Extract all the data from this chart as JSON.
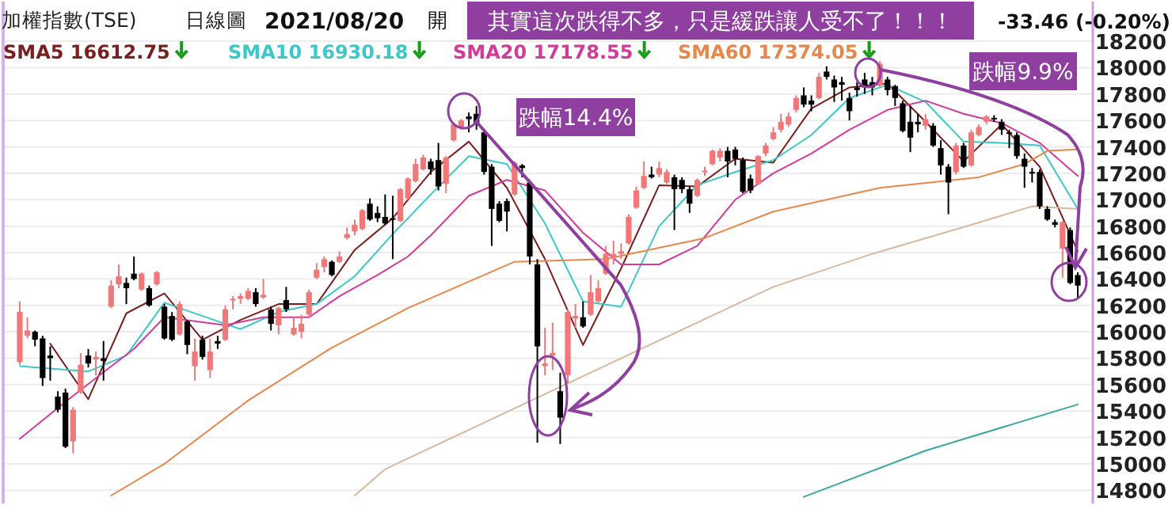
{
  "chart_data": {
    "type": "candlestick",
    "title": "加權指數(TSE)",
    "subtitle": "日線圖",
    "annotations": [
      "2021/08/20",
      "開",
      "-33.46 (-0.20%)",
      "其實這次跌得不多，只是緩跌讓人受不了！！！",
      "跌幅14.4%",
      "跌幅9.9%"
    ],
    "categories": [
      null,
      null,
      null,
      null,
      null,
      null,
      null,
      null,
      null,
      null,
      null,
      null,
      null,
      null,
      null,
      null,
      null,
      null,
      null,
      null,
      null,
      null,
      null,
      null,
      null,
      null,
      null,
      null,
      null,
      null,
      null,
      null,
      null,
      null,
      null,
      null,
      null,
      null,
      null,
      null,
      null,
      null,
      null,
      null,
      null,
      null,
      null,
      null,
      null,
      null,
      null,
      null,
      null,
      null,
      null,
      null,
      null,
      null,
      null,
      null,
      null,
      null,
      null,
      null,
      null,
      null,
      null,
      null,
      null,
      null,
      null,
      null,
      null,
      null,
      null,
      null,
      null,
      null,
      null,
      null,
      null,
      null,
      null,
      null,
      null,
      null,
      null,
      null,
      null,
      null,
      null,
      null,
      null,
      null,
      null,
      null,
      null,
      null,
      null,
      null,
      null,
      null,
      null,
      null,
      null,
      null,
      null,
      null,
      null,
      null,
      null,
      null,
      null,
      null,
      null,
      null,
      null,
      null,
      null,
      null,
      null,
      null,
      null,
      null,
      null,
      null,
      null,
      null,
      null,
      null,
      null,
      null,
      null,
      null,
      null,
      null,
      null,
      null,
      null,
      null
    ],
    "colors": [
      "#f07878",
      "#f07878",
      "#000000",
      "#000000",
      "#000000",
      "#000000",
      "#000000",
      "#f07878",
      "#f07878",
      "#000000",
      "#f07878",
      "#000000",
      "#f07878",
      "#f07878",
      "#000000",
      "#000000",
      "#f07878",
      "#000000",
      "#f07878",
      "#000000",
      "#000000",
      "#f07878",
      "#000000",
      "#f07878",
      "#000000",
      "#f07878",
      "#000000",
      "#f07878",
      "#f07878",
      "#f07878",
      "#f07878",
      "#000000",
      "#f07878",
      "#000000",
      "#f07878",
      "#000000",
      "#f07878",
      "#f07878",
      "#f07878",
      "#f07878",
      "#f07878",
      "#000000",
      "#f07878",
      "#f07878",
      "#f07878",
      "#f07878",
      "#000000",
      "#000000",
      "#000000",
      "#000000",
      "#f07878",
      "#f07878",
      "#f07878",
      "#f07878",
      "#000000",
      "#000000",
      "#f07878",
      "#f07878",
      "#f07878",
      "#000000",
      "#000000",
      "#000000",
      "#000000",
      "#000000",
      "#000000",
      "#f07878",
      "#000000",
      "#000000",
      "#000000",
      "#f07878",
      "#f07878",
      "#000000",
      "#f07878",
      "#f07878",
      "#000000",
      "#f07878",
      "#f07878",
      "#f07878",
      "#f07878",
      "#f07878",
      "#f07878",
      "#f07878",
      "#f07878",
      "#000000",
      "#f07878",
      "#f07878",
      "#000000",
      "#000000",
      "#000000",
      "#f07878",
      "#f07878",
      "#f07878",
      "#f07878",
      "#000000",
      "#000000",
      "#000000",
      "#000000",
      "#f07878",
      "#f07878",
      "#f07878",
      "#f07878",
      "#f07878",
      "#f07878",
      "#000000",
      "#000000",
      "#f07878",
      "#000000",
      "#000000",
      "#000000",
      "#000000",
      "#000000",
      "#000000",
      "#000000",
      "#f07878",
      "#000000",
      "#000000",
      "#000000",
      "#000000",
      "#000000",
      "#f07878",
      "#000000",
      "#000000",
      "#000000",
      "#f07878",
      "#000000",
      "#f07878",
      "#f07878",
      "#f07878",
      "#000000",
      "#000000",
      "#000000",
      "#000000",
      "#000000",
      "#000000",
      "#000000",
      "#000000",
      "#000000",
      "#f07878",
      "#000000",
      "#000000"
    ],
    "ohlc": [
      [
        15770,
        16230,
        15750,
        16150
      ],
      [
        15970,
        16110,
        15950,
        16010
      ],
      [
        16000,
        16010,
        15890,
        15940
      ],
      [
        15950,
        15970,
        15590,
        15650
      ],
      [
        15820,
        15890,
        15630,
        15800
      ],
      [
        15510,
        15550,
        15390,
        15410
      ],
      [
        15540,
        15570,
        15120,
        15130
      ],
      [
        15170,
        15430,
        15080,
        15410
      ],
      [
        15540,
        15840,
        15530,
        15750
      ],
      [
        15820,
        15870,
        15730,
        15760
      ],
      [
        15790,
        15850,
        15670,
        15810
      ],
      [
        15800,
        15930,
        15630,
        15780
      ],
      [
        16190,
        16390,
        16180,
        16350
      ],
      [
        16360,
        16510,
        16330,
        16420
      ],
      [
        16370,
        16410,
        16210,
        16330
      ],
      [
        16440,
        16570,
        16390,
        16400
      ],
      [
        16320,
        16450,
        16310,
        16440
      ],
      [
        16330,
        16350,
        16190,
        16200
      ],
      [
        16360,
        16460,
        16350,
        16450
      ],
      [
        16190,
        16210,
        15940,
        15950
      ],
      [
        16120,
        16150,
        15930,
        15940
      ],
      [
        15980,
        16230,
        15970,
        16210
      ],
      [
        16080,
        16090,
        15830,
        15900
      ],
      [
        15740,
        15950,
        15630,
        15850
      ],
      [
        15940,
        15970,
        15790,
        15810
      ],
      [
        15710,
        15950,
        15650,
        15850
      ],
      [
        15930,
        15970,
        15870,
        15910
      ],
      [
        15940,
        16200,
        15930,
        16170
      ],
      [
        16240,
        16270,
        16170,
        16250
      ],
      [
        16250,
        16290,
        16210,
        16270
      ],
      [
        16250,
        16330,
        16240,
        16310
      ],
      [
        16300,
        16330,
        16190,
        16210
      ],
      [
        16260,
        16400,
        16250,
        16280
      ],
      [
        16170,
        16190,
        16010,
        16060
      ],
      [
        16050,
        16190,
        15980,
        16180
      ],
      [
        16240,
        16340,
        16150,
        16170
      ],
      [
        15980,
        16110,
        15970,
        16030
      ],
      [
        16000,
        16130,
        15950,
        16060
      ],
      [
        16130,
        16320,
        16120,
        16300
      ],
      [
        16410,
        16520,
        16400,
        16470
      ],
      [
        16490,
        16570,
        16450,
        16550
      ],
      [
        16530,
        16540,
        16420,
        16430
      ],
      [
        16530,
        16610,
        16520,
        16570
      ],
      [
        16710,
        16790,
        16700,
        16740
      ],
      [
        16760,
        16850,
        16730,
        16810
      ],
      [
        16780,
        16930,
        16770,
        16920
      ],
      [
        16970,
        17010,
        16840,
        16850
      ],
      [
        16900,
        16950,
        16830,
        16860
      ],
      [
        16870,
        17040,
        16810,
        16820
      ],
      [
        16860,
        17030,
        16550,
        16850
      ],
      [
        16840,
        17090,
        16830,
        17080
      ],
      [
        17010,
        17170,
        17000,
        17160
      ],
      [
        17140,
        17310,
        17130,
        17270
      ],
      [
        17230,
        17340,
        17220,
        17320
      ],
      [
        17290,
        17310,
        17190,
        17230
      ],
      [
        17300,
        17430,
        17070,
        17100
      ],
      [
        17120,
        17330,
        17050,
        17320
      ],
      [
        17450,
        17580,
        17440,
        17570
      ],
      [
        17550,
        17610,
        17530,
        17600
      ],
      [
        17630,
        17660,
        17510,
        17610
      ],
      [
        17650,
        17710,
        17530,
        17570
      ],
      [
        17510,
        17530,
        17190,
        17210
      ],
      [
        17250,
        17270,
        16650,
        16930
      ],
      [
        16970,
        16990,
        16830,
        16840
      ],
      [
        16990,
        17010,
        16760,
        16910
      ],
      [
        17040,
        17290,
        17030,
        17280
      ],
      [
        17260,
        17270,
        17170,
        17240
      ],
      [
        17130,
        17150,
        16510,
        16570
      ],
      [
        16510,
        16550,
        15160,
        15890
      ],
      [
        15740,
        16030,
        15670,
        15760
      ],
      [
        15820,
        16070,
        15710,
        15840
      ],
      [
        15550,
        15690,
        15150,
        15350
      ],
      [
        15670,
        16170,
        15610,
        16150
      ],
      [
        16100,
        16210,
        16030,
        16120
      ],
      [
        16110,
        16230,
        16030,
        16040
      ],
      [
        16130,
        16430,
        16120,
        16300
      ],
      [
        16230,
        16390,
        16220,
        16330
      ],
      [
        16440,
        16650,
        16430,
        16590
      ],
      [
        16570,
        16690,
        16510,
        16590
      ],
      [
        16590,
        16670,
        16550,
        16610
      ],
      [
        16670,
        16890,
        16660,
        16870
      ],
      [
        16940,
        17100,
        16930,
        17070
      ],
      [
        17090,
        17290,
        17080,
        17180
      ],
      [
        17190,
        17250,
        17160,
        17170
      ],
      [
        17190,
        17290,
        17170,
        17240
      ],
      [
        17130,
        17230,
        17120,
        17210
      ],
      [
        17170,
        17190,
        16770,
        17080
      ],
      [
        17150,
        17170,
        17050,
        17080
      ],
      [
        17080,
        17100,
        16900,
        16970
      ],
      [
        17030,
        17160,
        17020,
        17150
      ],
      [
        17210,
        17250,
        17180,
        17220
      ],
      [
        17270,
        17380,
        17260,
        17370
      ],
      [
        17320,
        17390,
        17290,
        17370
      ],
      [
        17370,
        17400,
        17170,
        17290
      ],
      [
        17380,
        17400,
        17260,
        17310
      ],
      [
        17300,
        17320,
        17050,
        17060
      ],
      [
        17160,
        17190,
        17050,
        17070
      ],
      [
        17120,
        17340,
        17110,
        17330
      ],
      [
        17350,
        17430,
        17330,
        17410
      ],
      [
        17460,
        17550,
        17450,
        17510
      ],
      [
        17530,
        17650,
        17510,
        17590
      ],
      [
        17570,
        17660,
        17550,
        17630
      ],
      [
        17680,
        17790,
        17660,
        17770
      ],
      [
        17790,
        17850,
        17700,
        17720
      ],
      [
        17750,
        17790,
        17670,
        17720
      ],
      [
        17770,
        17960,
        17760,
        17930
      ],
      [
        17970,
        18010,
        17910,
        17930
      ],
      [
        17910,
        17940,
        17740,
        17850
      ],
      [
        17890,
        17930,
        17750,
        17870
      ],
      [
        17770,
        17810,
        17600,
        17670
      ],
      [
        17850,
        17890,
        17780,
        17830
      ],
      [
        17910,
        17960,
        17800,
        17850
      ],
      [
        17890,
        17930,
        17790,
        17850
      ],
      [
        17870,
        18050,
        17850,
        18030
      ],
      [
        17910,
        17930,
        17790,
        17830
      ],
      [
        17860,
        17870,
        17710,
        17770
      ],
      [
        17730,
        17750,
        17510,
        17520
      ],
      [
        17590,
        17710,
        17360,
        17470
      ],
      [
        17590,
        17650,
        17510,
        17570
      ],
      [
        17560,
        17650,
        17530,
        17610
      ],
      [
        17560,
        17580,
        17400,
        17410
      ],
      [
        17390,
        17450,
        17190,
        17260
      ],
      [
        17250,
        17270,
        16890,
        17130
      ],
      [
        17210,
        17430,
        17190,
        17410
      ],
      [
        17410,
        17430,
        17240,
        17250
      ],
      [
        17260,
        17530,
        17250,
        17510
      ],
      [
        17490,
        17570,
        17480,
        17550
      ],
      [
        17590,
        17640,
        17570,
        17630
      ],
      [
        17620,
        17640,
        17590,
        17610
      ],
      [
        17590,
        17610,
        17490,
        17530
      ],
      [
        17510,
        17530,
        17390,
        17500
      ],
      [
        17490,
        17510,
        17310,
        17330
      ],
      [
        17310,
        17350,
        17090,
        17250
      ],
      [
        17210,
        17240,
        17130,
        17200
      ],
      [
        17210,
        17230,
        16930,
        16950
      ],
      [
        16930,
        16950,
        16840,
        16850
      ],
      [
        16830,
        16850,
        16790,
        16810
      ],
      [
        16630,
        16840,
        16410,
        16830
      ],
      [
        16770,
        16790,
        16360,
        16370
      ],
      [
        16430,
        16450,
        16250,
        16350
      ]
    ],
    "series": [
      {
        "name": "SMA5 16612.75",
        "type": "line",
        "color": "#7a1f1f",
        "values": [
          null,
          null,
          null,
          null,
          15910,
          null,
          null,
          null,
          null,
          15490,
          null,
          null,
          null,
          null,
          16140,
          null,
          null,
          null,
          null,
          16290,
          null,
          null,
          null,
          null,
          15940,
          null,
          null,
          null,
          null,
          16090,
          null,
          null,
          null,
          null,
          16210,
          null,
          null,
          null,
          null,
          16210,
          null,
          null,
          null,
          null,
          16620,
          null,
          null,
          null,
          null,
          16860,
          null,
          null,
          null,
          null,
          17210,
          null,
          null,
          null,
          null,
          17440,
          null,
          null,
          null,
          null,
          17090,
          null,
          null,
          null,
          null,
          16550,
          null,
          null,
          null,
          null,
          15900,
          null,
          null,
          null,
          null,
          16480,
          null,
          null,
          null,
          null,
          17110,
          null,
          null,
          null,
          null,
          17100,
          null,
          null,
          null,
          null,
          17310,
          null,
          null,
          null,
          null,
          17280,
          null,
          null,
          null,
          null,
          17690,
          null,
          null,
          null,
          null,
          17850,
          null,
          null,
          null,
          null,
          17880,
          null,
          null,
          null,
          null,
          17590,
          null,
          null,
          null,
          null,
          17290,
          null,
          null,
          null,
          null,
          17570,
          null,
          null,
          null,
          null,
          17250,
          null,
          null,
          null,
          null,
          16610
        ]
      },
      {
        "name": "SMA10 16930.18",
        "type": "line",
        "color": "#3cc8c8",
        "values": [
          15740,
          null,
          null,
          null,
          null,
          null,
          null,
          null,
          null,
          15700,
          null,
          null,
          null,
          null,
          15820,
          null,
          null,
          null,
          null,
          16220,
          null,
          null,
          null,
          null,
          16120,
          null,
          null,
          null,
          null,
          16020,
          null,
          null,
          null,
          null,
          16150,
          null,
          null,
          null,
          null,
          16210,
          null,
          null,
          null,
          null,
          16420,
          null,
          null,
          null,
          null,
          16740,
          null,
          null,
          null,
          null,
          17040,
          null,
          null,
          null,
          null,
          17330,
          null,
          null,
          null,
          null,
          17270,
          null,
          null,
          null,
          null,
          16820,
          null,
          null,
          null,
          null,
          16230,
          null,
          null,
          null,
          null,
          16190,
          null,
          null,
          null,
          null,
          16800,
          null,
          null,
          null,
          null,
          17110,
          null,
          null,
          null,
          null,
          17210,
          null,
          null,
          null,
          null,
          17300,
          null,
          null,
          null,
          null,
          17490,
          null,
          null,
          null,
          null,
          17770,
          null,
          null,
          null,
          null,
          17870,
          null,
          null,
          null,
          null,
          17740,
          null,
          null,
          null,
          null,
          17440,
          null,
          null,
          null,
          null,
          17430,
          null,
          null,
          null,
          null,
          17410,
          null,
          null,
          null,
          null,
          16930
        ]
      },
      {
        "name": "SMA20 17178.55",
        "type": "line",
        "color": "#d33a9a",
        "values": [
          15190,
          null,
          null,
          null,
          null,
          null,
          15470,
          null,
          null,
          null,
          15650,
          null,
          null,
          null,
          null,
          15870,
          null,
          null,
          null,
          16110,
          null,
          null,
          null,
          null,
          null,
          null,
          null,
          16050,
          null,
          null,
          null,
          null,
          16110,
          null,
          null,
          null,
          null,
          null,
          16110,
          null,
          null,
          null,
          16270,
          null,
          null,
          null,
          null,
          16430,
          null,
          null,
          null,
          16570,
          null,
          null,
          16730,
          null,
          null,
          null,
          null,
          17030,
          null,
          null,
          null,
          null,
          17150,
          null,
          null,
          null,
          null,
          17070,
          null,
          null,
          null,
          null,
          16750,
          null,
          null,
          null,
          null,
          16510,
          null,
          null,
          null,
          null,
          16510,
          null,
          null,
          null,
          null,
          16650,
          null,
          null,
          null,
          null,
          17000,
          null,
          null,
          null,
          null,
          17200,
          null,
          null,
          null,
          null,
          17350,
          null,
          null,
          null,
          null,
          17530,
          null,
          null,
          null,
          null,
          17680,
          null,
          null,
          null,
          null,
          17750,
          null,
          null,
          null,
          null,
          17650,
          null,
          null,
          null,
          null,
          17580,
          null,
          null,
          null,
          null,
          17430,
          null,
          null,
          null,
          null,
          17180
        ]
      },
      {
        "name": "SMA60 17374.05",
        "type": "line",
        "color": "#e8874a",
        "values": [
          null,
          null,
          null,
          null,
          null,
          null,
          null,
          null,
          null,
          null,
          null,
          null,
          14760,
          null,
          null,
          null,
          null,
          null,
          null,
          15000,
          null,
          null,
          null,
          null,
          null,
          null,
          null,
          null,
          null,
          null,
          15480,
          null,
          null,
          null,
          null,
          null,
          null,
          null,
          null,
          null,
          null,
          15880,
          null,
          null,
          null,
          null,
          null,
          null,
          null,
          null,
          null,
          16180,
          null,
          null,
          null,
          null,
          null,
          null,
          null,
          null,
          null,
          null,
          null,
          null,
          null,
          16530,
          null,
          null,
          null,
          null,
          null,
          null,
          null,
          null,
          null,
          null,
          null,
          16550,
          null,
          null,
          null,
          null,
          null,
          null,
          null,
          null,
          null,
          null,
          null,
          null,
          16710,
          null,
          null,
          null,
          null,
          null,
          null,
          null,
          null,
          16910,
          null,
          null,
          null,
          null,
          null,
          null,
          null,
          null,
          null,
          null,
          null,
          null,
          null,
          17090,
          null,
          null,
          null,
          null,
          null,
          null,
          null,
          null,
          null,
          null,
          null,
          null,
          17170,
          null,
          null,
          null,
          null,
          null,
          17270,
          null,
          null,
          17370,
          null,
          null,
          null,
          17380
        ]
      },
      {
        "type": "line",
        "color": "#d9b8a0",
        "values": [
          null,
          null,
          null,
          null,
          null,
          null,
          null,
          null,
          null,
          null,
          null,
          null,
          null,
          null,
          null,
          null,
          null,
          null,
          null,
          null,
          null,
          null,
          null,
          null,
          null,
          null,
          null,
          null,
          null,
          null,
          null,
          null,
          null,
          null,
          null,
          null,
          null,
          null,
          null,
          null,
          null,
          null,
          null,
          null,
          14760,
          null,
          null,
          null,
          14960,
          null,
          null,
          null,
          null,
          null,
          null,
          null,
          null,
          null,
          null,
          null,
          null,
          null,
          null,
          null,
          null,
          null,
          null,
          null,
          null,
          null,
          null,
          null,
          null,
          null,
          null,
          null,
          null,
          null,
          null,
          null,
          null,
          null,
          null,
          null,
          null,
          null,
          null,
          null,
          null,
          null,
          null,
          null,
          null,
          null,
          null,
          null,
          null,
          null,
          null,
          16340,
          null,
          null,
          null,
          null,
          null,
          null,
          null,
          null,
          null,
          null,
          null,
          null,
          16590,
          null,
          null,
          null,
          null,
          null,
          null,
          null,
          null,
          null,
          null,
          null,
          null,
          16810,
          null,
          null,
          null,
          null,
          null,
          null,
          null,
          16950,
          null,
          null,
          null,
          null,
          null,
          16930
        ]
      },
      {
        "type": "line",
        "color": "#3aa8a0",
        "values": [
          null,
          null,
          null,
          null,
          null,
          null,
          null,
          null,
          null,
          null,
          null,
          null,
          null,
          null,
          null,
          null,
          null,
          null,
          null,
          null,
          null,
          null,
          null,
          null,
          null,
          null,
          null,
          null,
          null,
          null,
          null,
          null,
          null,
          null,
          null,
          null,
          null,
          null,
          null,
          null,
          null,
          null,
          null,
          null,
          null,
          null,
          null,
          null,
          null,
          null,
          null,
          null,
          null,
          null,
          null,
          null,
          null,
          null,
          null,
          null,
          null,
          null,
          null,
          null,
          null,
          null,
          null,
          null,
          null,
          null,
          null,
          null,
          null,
          null,
          null,
          null,
          null,
          null,
          null,
          null,
          null,
          null,
          null,
          null,
          null,
          null,
          null,
          null,
          null,
          null,
          null,
          null,
          null,
          null,
          null,
          null,
          null,
          null,
          null,
          null,
          null,
          null,
          null,
          14750,
          null,
          null,
          null,
          null,
          null,
          null,
          null,
          null,
          null,
          null,
          null,
          null,
          null,
          null,
          null,
          15100,
          null,
          null,
          null,
          null,
          null,
          null,
          null,
          null,
          null,
          null,
          null,
          null,
          null,
          null,
          null,
          null,
          null,
          null,
          null,
          15450
        ]
      }
    ],
    "ylim": [
      14700,
      18500
    ],
    "yticks": [
      14800,
      15000,
      15200,
      15400,
      15600,
      15800,
      16000,
      16200,
      16400,
      16600,
      16800,
      17000,
      17200,
      17400,
      17600,
      17800,
      18000,
      18200
    ],
    "grid": "y",
    "tick_labels": "y",
    "legend": "top left"
  }
}
